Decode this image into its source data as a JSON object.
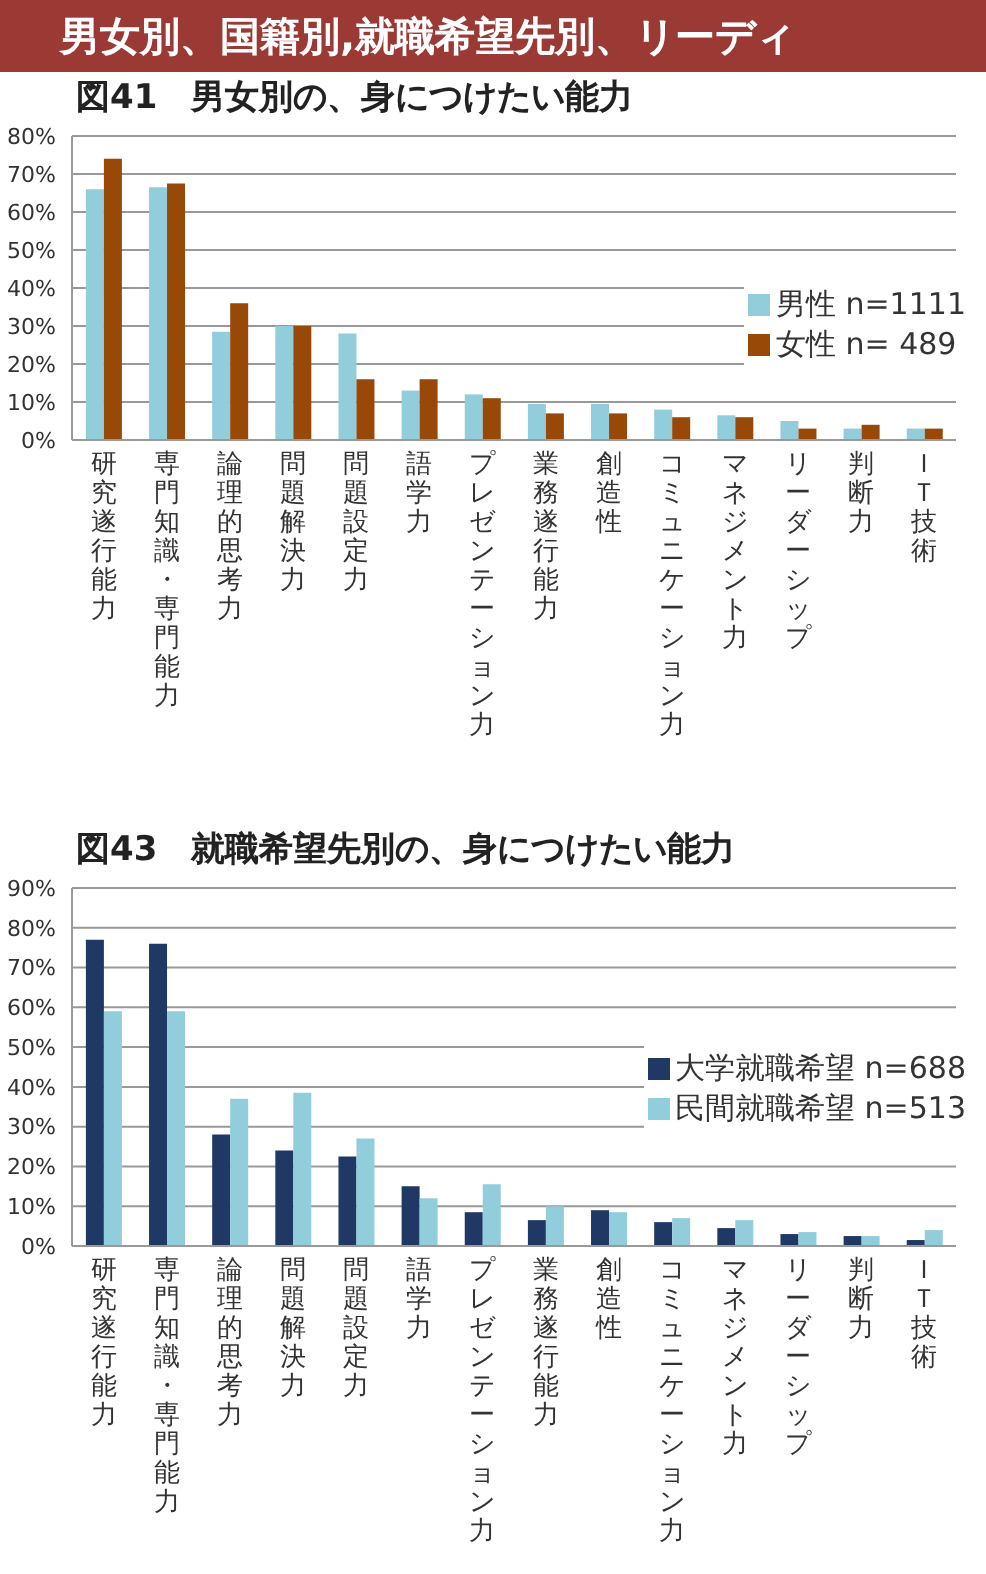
{
  "chart_data": [
    {
      "type": "bar",
      "title": "図41　男女別の、身につけたい能力",
      "annotations": [
        "男女別、国籍別,就職希望先別、リーディ"
      ],
      "categories": [
        "研究遂行能力",
        "専門知識・専門能力",
        "論理的思考力",
        "問題解決力",
        "問題設定力",
        "語学力",
        "プレゼンテーション力",
        "業務遂行能力",
        "創造性",
        "コミュニケーション力",
        "マネジメント力",
        "リーダーシップ",
        "判断力",
        "ＩＴ技術"
      ],
      "series": [
        {
          "name": "男性 n=1111",
          "color": "#92cddc",
          "values": [
            66,
            66.5,
            28.5,
            30,
            28,
            13,
            12,
            9.5,
            9.5,
            8,
            6.5,
            5,
            3,
            3
          ]
        },
        {
          "name": "女性 n= 489",
          "color": "#984807",
          "values": [
            74,
            67.5,
            36,
            30,
            16,
            16,
            11,
            7,
            7,
            6,
            6,
            3,
            4,
            3
          ]
        }
      ],
      "ylim": [
        0,
        80
      ],
      "yticks": [
        {
          "value": 0,
          "label": "0%"
        },
        {
          "value": 10,
          "label": "10%"
        },
        {
          "value": 20,
          "label": "20%"
        },
        {
          "value": 30,
          "label": "30%"
        },
        {
          "value": 40,
          "label": "40%"
        },
        {
          "value": 50,
          "label": "50%"
        },
        {
          "value": 60,
          "label": "60%"
        },
        {
          "value": 70,
          "label": "70%"
        },
        {
          "value": 80,
          "label": "80%"
        }
      ],
      "grid": "y",
      "legend": "right"
    },
    {
      "type": "bar",
      "title": "図43　就職希望先別の、身につけたい能力",
      "categories": [
        "研究遂行能力",
        "専門知識・専門能力",
        "論理的思考力",
        "問題解決力",
        "問題設定力",
        "語学力",
        "プレゼンテーション力",
        "業務遂行能力",
        "創造性",
        "コミュニケーション力",
        "マネジメント力",
        "リーダーシップ",
        "判断力",
        "ＩＴ技術"
      ],
      "series": [
        {
          "name": "大学就職希望 n=688",
          "color": "#1f3864",
          "values": [
            77,
            76,
            28,
            24,
            22.5,
            15,
            8.5,
            6.5,
            9,
            6,
            4.5,
            3,
            2.5,
            1.5
          ]
        },
        {
          "name": "民間就職希望 n=513",
          "color": "#92cddc",
          "values": [
            59,
            59,
            37,
            38.5,
            27,
            12,
            15.5,
            10,
            8.5,
            7,
            6.5,
            3.5,
            2.5,
            4
          ]
        }
      ],
      "ylim": [
        0,
        90
      ],
      "yticks": [
        {
          "value": 0,
          "label": "0%"
        },
        {
          "value": 10,
          "label": "10%"
        },
        {
          "value": 20,
          "label": "20%"
        },
        {
          "value": 30,
          "label": "30%"
        },
        {
          "value": 40,
          "label": "40%"
        },
        {
          "value": 50,
          "label": "50%"
        },
        {
          "value": 60,
          "label": "60%"
        },
        {
          "value": 70,
          "label": "70%"
        },
        {
          "value": 80,
          "label": "80%"
        },
        {
          "value": 90,
          "label": "90%"
        }
      ],
      "grid": "y",
      "legend": "right"
    }
  ]
}
